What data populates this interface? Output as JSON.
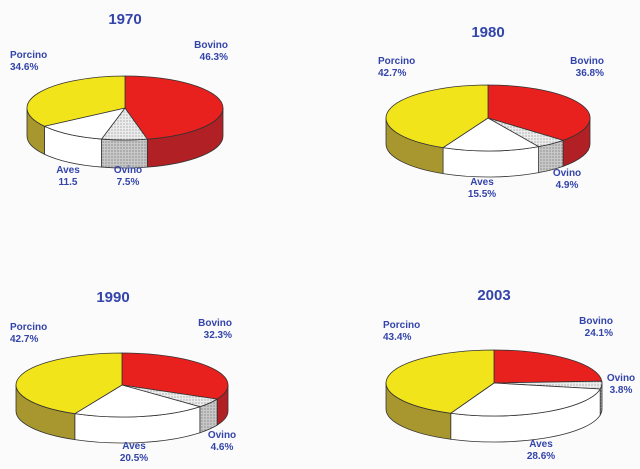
{
  "chart_data": [
    {
      "type": "pie",
      "title": "1970",
      "slices": [
        {
          "name": "Bovino",
          "label": "Bovino",
          "value_text": "46.3%",
          "value": 46.3
        },
        {
          "name": "Ovino",
          "label": "Ovino",
          "value_text": "7.5%",
          "value": 7.5
        },
        {
          "name": "Aves",
          "label": "Aves",
          "value_text": "11.5",
          "value": 11.5
        },
        {
          "name": "Porcino",
          "label": "Porcino",
          "value_text": "34.6%",
          "value": 34.6
        }
      ]
    },
    {
      "type": "pie",
      "title": "1980",
      "slices": [
        {
          "name": "Bovino",
          "label": "Bovino",
          "value_text": "36.8%",
          "value": 36.8
        },
        {
          "name": "Ovino",
          "label": "Ovino",
          "value_text": "4.9%",
          "value": 4.9
        },
        {
          "name": "Aves",
          "label": "Aves",
          "value_text": "15.5%",
          "value": 15.5
        },
        {
          "name": "Porcino",
          "label": "Porcino",
          "value_text": "42.7%",
          "value": 42.7
        }
      ]
    },
    {
      "type": "pie",
      "title": "1990",
      "slices": [
        {
          "name": "Bovino",
          "label": "Bovino",
          "value_text": "32.3%",
          "value": 32.3
        },
        {
          "name": "Ovino",
          "label": "Ovino",
          "value_text": "4.6%",
          "value": 4.6
        },
        {
          "name": "Aves",
          "label": "Aves",
          "value_text": "20.5%",
          "value": 20.5
        },
        {
          "name": "Porcino",
          "label": "Porcino",
          "value_text": "42.7%",
          "value": 42.7
        }
      ]
    },
    {
      "type": "pie",
      "title": "2003",
      "slices": [
        {
          "name": "Bovino",
          "label": "Bovino",
          "value_text": "24.1%",
          "value": 24.1
        },
        {
          "name": "Ovino",
          "label": "Ovino",
          "value_text": "3.8%",
          "value": 3.8
        },
        {
          "name": "Aves",
          "label": "Aves",
          "value_text": "28.6%",
          "value": 28.6
        },
        {
          "name": "Porcino",
          "label": "Porcino",
          "value_text": "43.4%",
          "value": 43.4
        }
      ]
    }
  ],
  "colors": {
    "Bovino": "#e8201e",
    "Ovino": "#dcdcdc",
    "Aves": "#ffffff",
    "Porcino": "#f2e41a",
    "title_text": "#3344aa"
  }
}
